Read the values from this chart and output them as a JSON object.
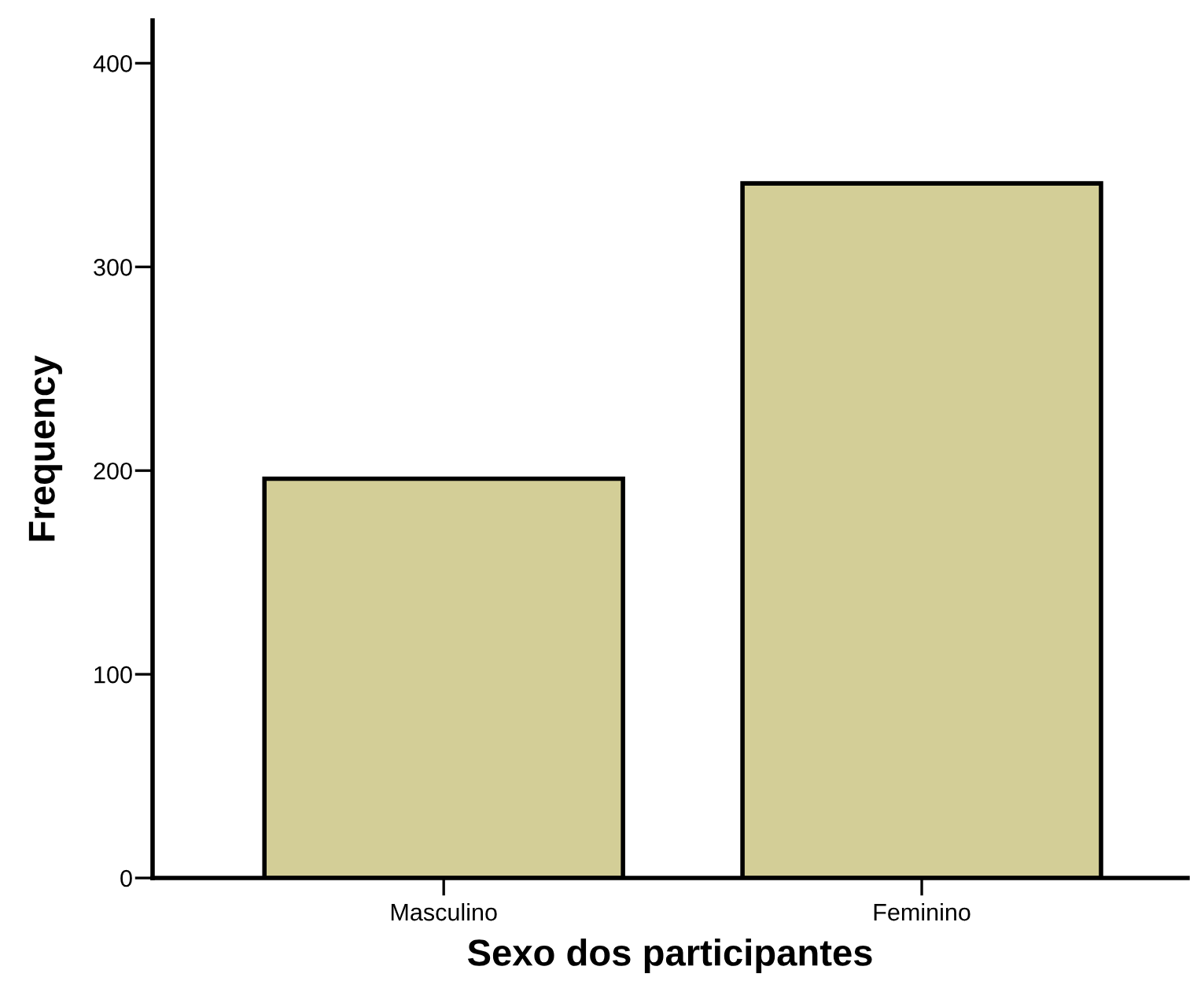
{
  "chart_data": {
    "type": "bar",
    "xlabel": "Sexo dos participantes",
    "ylabel": "Frequency",
    "categories": [
      "Masculino",
      "Feminino"
    ],
    "series": [
      {
        "color": "#d3ce97",
        "values": [
          196,
          341
        ]
      }
    ],
    "ylim": [
      0,
      421
    ],
    "yticks": [
      0,
      100,
      200,
      300,
      400
    ],
    "grid": false,
    "legend": false
  }
}
